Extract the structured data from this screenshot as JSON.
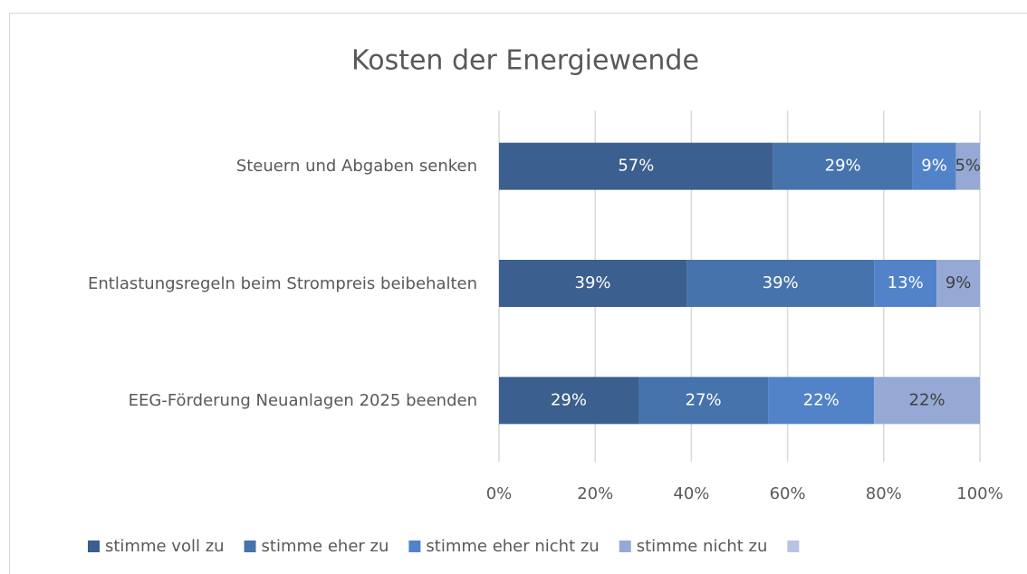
{
  "chart_data": {
    "type": "stacked_barh",
    "title": "Kosten der Energiewende",
    "categories": [
      "Steuern und Abgaben senken",
      "Entlastungsregeln beim Strompreis beibehalten",
      "EEG-Förderung Neuanlagen 2025 beenden"
    ],
    "series": [
      {
        "name": "stimme voll zu",
        "color": "#3b5f8e",
        "label_color": "#ffffff",
        "values": [
          57,
          39,
          29
        ],
        "value_labels": [
          "57%",
          "39%",
          "29%"
        ]
      },
      {
        "name": "stimme eher zu",
        "color": "#4673ab",
        "label_color": "#ffffff",
        "values": [
          29,
          39,
          27
        ],
        "value_labels": [
          "29%",
          "39%",
          "27%"
        ]
      },
      {
        "name": "stimme eher nicht zu",
        "color": "#5283c8",
        "label_color": "#ffffff",
        "values": [
          9,
          13,
          22
        ],
        "value_labels": [
          "9%",
          "13%",
          "22%"
        ]
      },
      {
        "name": "stimme nicht zu",
        "color": "#95a9d4",
        "label_color": "#404040",
        "values": [
          5,
          9,
          22
        ],
        "value_labels": [
          "5%",
          "9%",
          "22%"
        ]
      },
      {
        "name": null,
        "color": "#b7c3e2",
        "values": [
          0,
          0,
          0
        ]
      }
    ],
    "xlim": [
      0,
      100
    ],
    "xticks": [
      {
        "value": 0,
        "label": "0%"
      },
      {
        "value": 20,
        "label": "20%"
      },
      {
        "value": 40,
        "label": "40%"
      },
      {
        "value": 60,
        "label": "60%"
      },
      {
        "value": 80,
        "label": "80%"
      },
      {
        "value": 100,
        "label": "100%"
      }
    ],
    "grid": true,
    "legend": "bottom"
  }
}
